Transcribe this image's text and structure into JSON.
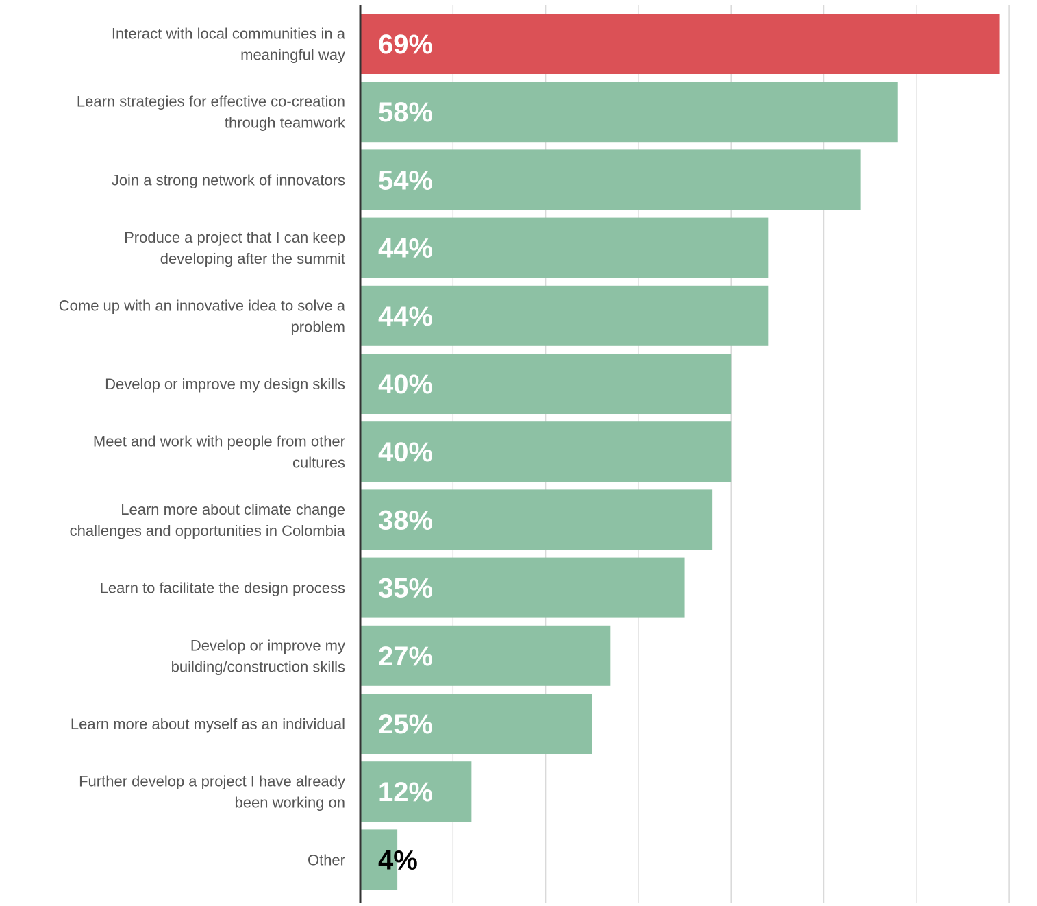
{
  "chart_data": {
    "type": "bar",
    "orientation": "horizontal",
    "title": "",
    "xlabel": "",
    "ylabel": "",
    "xlim": [
      0,
      70
    ],
    "grid": true,
    "legend": "none",
    "categories": [
      "Interact with local communities in a meaningful way",
      "Learn strategies for effective co-creation through teamwork",
      "Join a strong network of innovators",
      "Produce a project that I can keep developing after the summit",
      "Come up with an innovative idea to solve a problem",
      "Develop or improve my design skills",
      "Meet and work with people from other cultures",
      "Learn more about climate change challenges and opportunities in Colombia",
      "Learn to facilitate the design process",
      "Develop or improve my building/construction skills",
      "Learn more about myself as an individual",
      "Further develop a project I have already been working on",
      "Other"
    ],
    "label_lines": [
      [
        "Interact with local communities in a",
        "meaningful way"
      ],
      [
        "Learn strategies for effective co-creation",
        "through teamwork"
      ],
      [
        "Join a strong network of innovators"
      ],
      [
        "Produce a project that I can keep",
        "developing after the summit"
      ],
      [
        "Come up with an innovative idea to solve a",
        "problem"
      ],
      [
        "Develop or improve my design skills"
      ],
      [
        "Meet and work with people from other",
        "cultures"
      ],
      [
        "Learn more about climate change",
        "challenges and opportunities in Colombia"
      ],
      [
        "Learn to facilitate the design process"
      ],
      [
        "Develop or improve my",
        "building/construction skills"
      ],
      [
        "Learn more about myself as an individual"
      ],
      [
        "Further develop a project I have already",
        "been working on"
      ],
      [
        "Other"
      ]
    ],
    "values": [
      69,
      58,
      54,
      44,
      44,
      40,
      40,
      38,
      35,
      27,
      25,
      12,
      4
    ],
    "value_labels": [
      "69%",
      "58%",
      "54%",
      "44%",
      "44%",
      "40%",
      "40%",
      "38%",
      "35%",
      "27%",
      "25%",
      "12%",
      "4%"
    ],
    "bar_colors": [
      "#db5156",
      "#8dc1a4",
      "#8dc1a4",
      "#8dc1a4",
      "#8dc1a4",
      "#8dc1a4",
      "#8dc1a4",
      "#8dc1a4",
      "#8dc1a4",
      "#8dc1a4",
      "#8dc1a4",
      "#8dc1a4",
      "#8dc1a4"
    ],
    "value_label_colors": [
      "#ffffff",
      "#ffffff",
      "#ffffff",
      "#ffffff",
      "#ffffff",
      "#ffffff",
      "#ffffff",
      "#ffffff",
      "#ffffff",
      "#ffffff",
      "#ffffff",
      "#ffffff",
      "#000000"
    ],
    "colors": {
      "gridline": "#d9d9d9",
      "axis": "#333333",
      "category_text": "#555555"
    }
  }
}
